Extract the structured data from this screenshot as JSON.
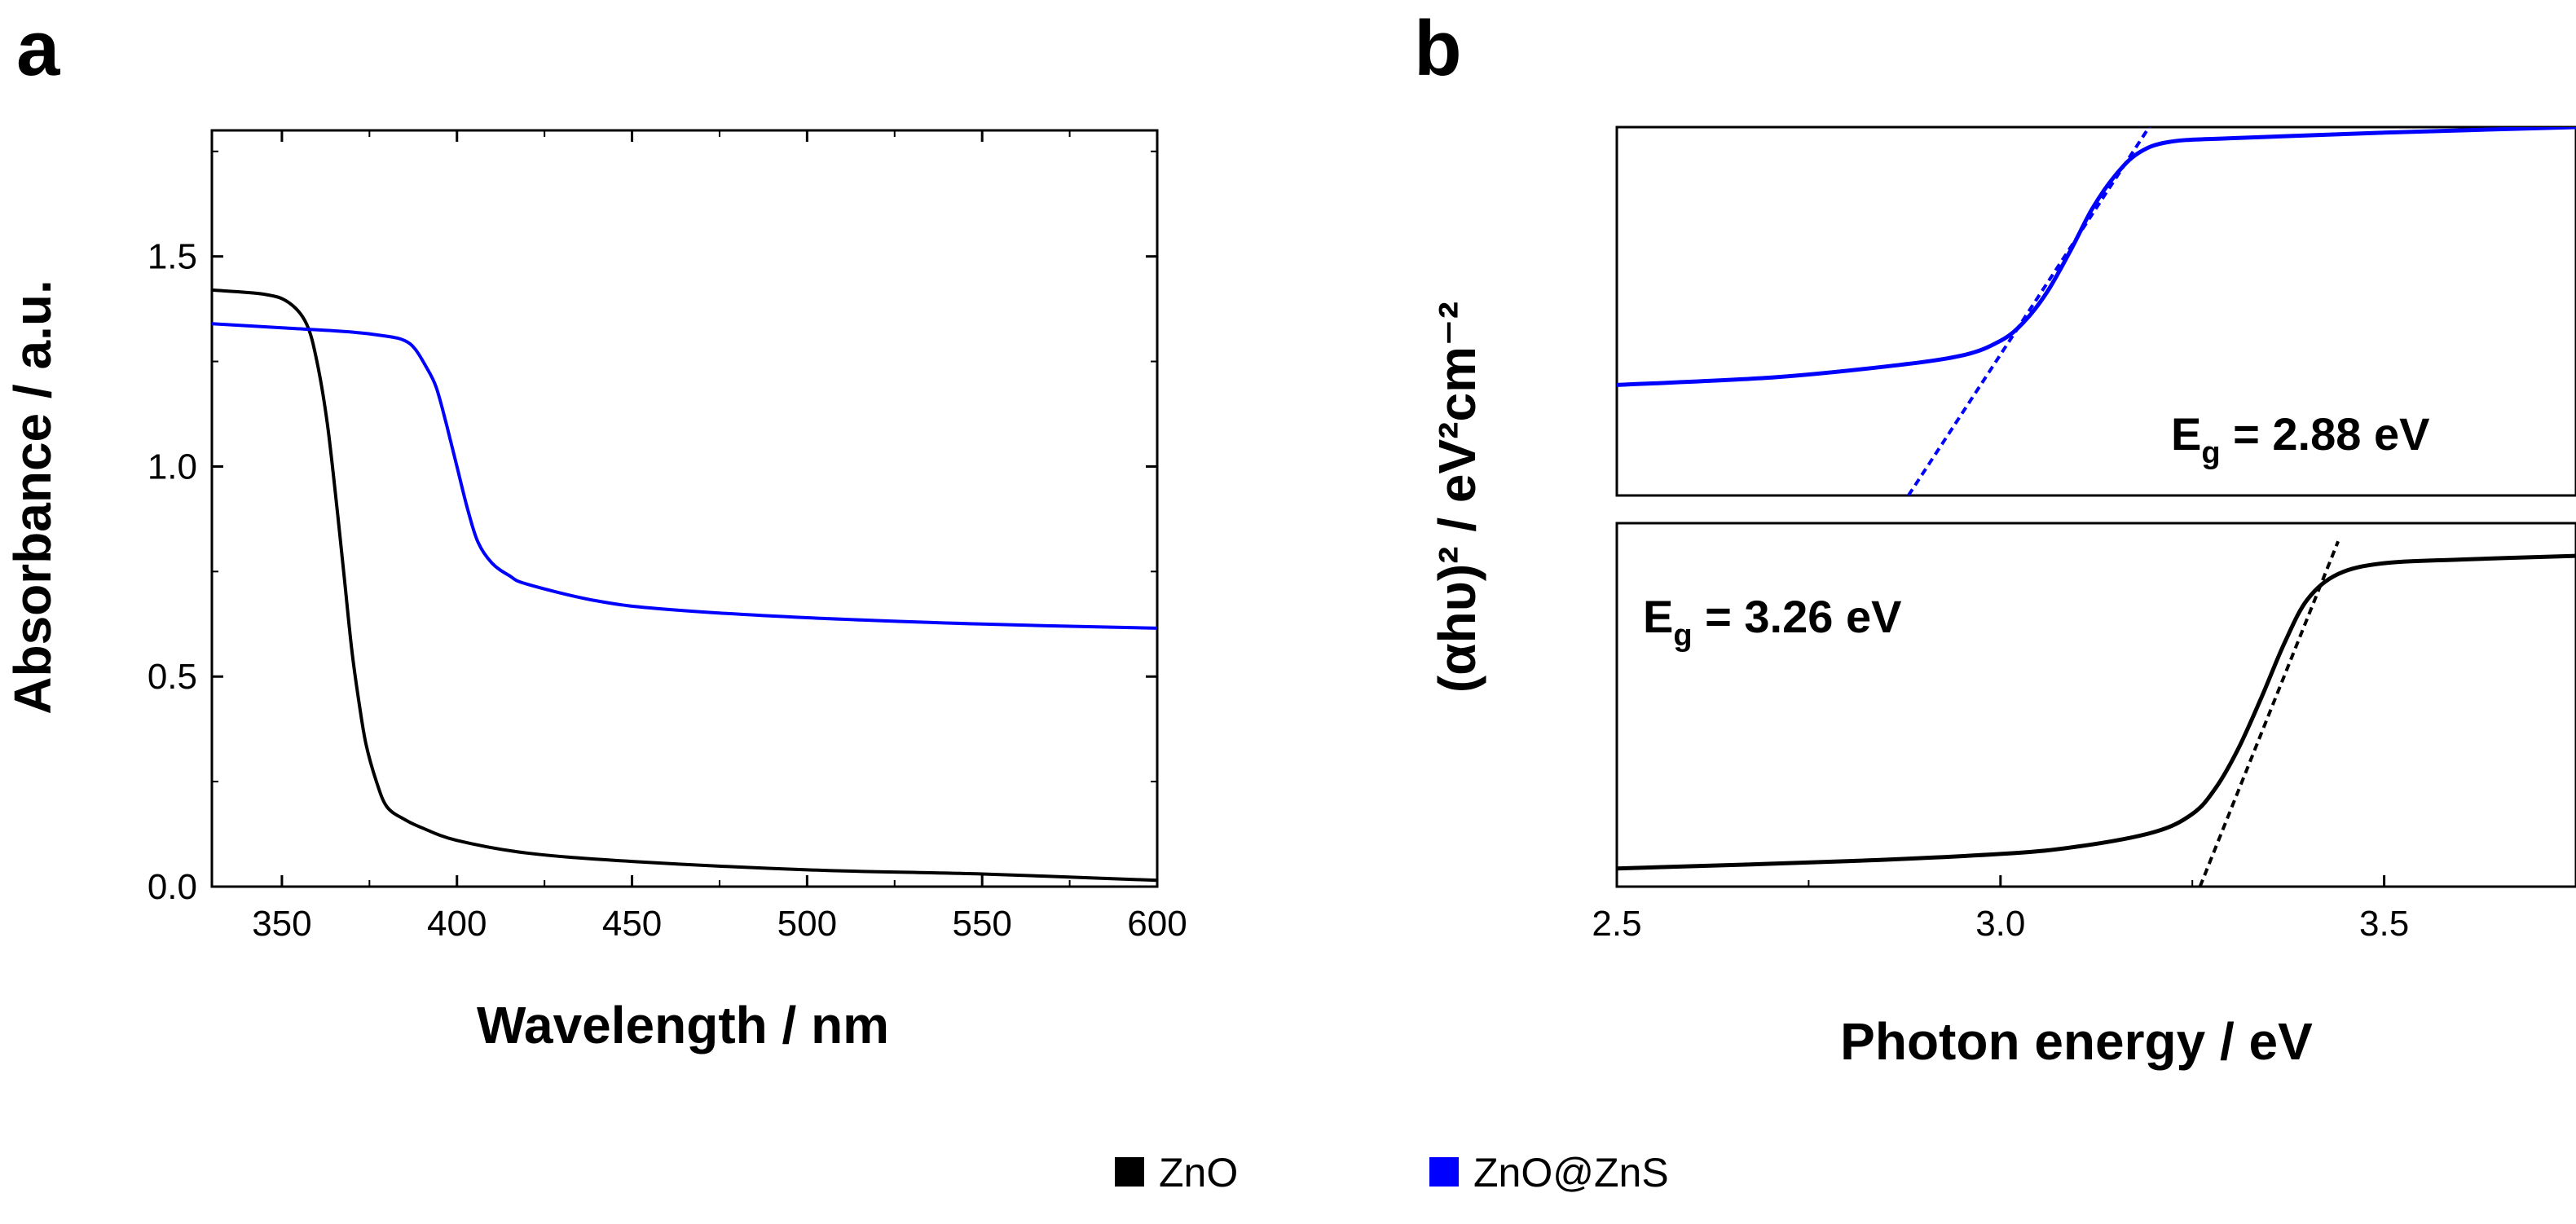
{
  "legend": [
    {
      "label": "ZnO",
      "color": "#000000"
    },
    {
      "label": "ZnO@ZnS",
      "color": "#0000ff"
    }
  ],
  "chart_data": [
    {
      "panel": "a",
      "type": "line",
      "xlabel": "Wavelength / nm",
      "ylabel": "Absorbance / a.u.",
      "xlim": [
        330,
        600
      ],
      "ylim": [
        0.0,
        1.8
      ],
      "xticks": [
        350,
        400,
        450,
        500,
        550,
        600
      ],
      "xtick_labels": [
        "350",
        "400",
        "450",
        "500",
        "550",
        "600"
      ],
      "yticks": [
        0.0,
        0.5,
        1.0,
        1.5
      ],
      "ytick_labels": [
        "0.0",
        "0.5",
        "1.0",
        "1.5"
      ],
      "series": [
        {
          "name": "ZnO",
          "color": "#000000",
          "x": [
            330,
            345,
            352,
            357,
            360,
            363,
            366,
            368,
            370,
            372,
            374,
            377,
            380,
            385,
            390,
            400,
            420,
            450,
            500,
            550,
            600
          ],
          "y": [
            1.42,
            1.41,
            1.39,
            1.34,
            1.25,
            1.1,
            0.88,
            0.72,
            0.56,
            0.44,
            0.34,
            0.25,
            0.19,
            0.16,
            0.14,
            0.11,
            0.08,
            0.06,
            0.04,
            0.03,
            0.015
          ]
        },
        {
          "name": "ZnO@ZnS",
          "color": "#0000ff",
          "x": [
            330,
            350,
            370,
            380,
            385,
            388,
            391,
            394,
            397,
            400,
            403,
            406,
            410,
            415,
            420,
            440,
            460,
            500,
            550,
            600
          ],
          "y": [
            1.34,
            1.33,
            1.32,
            1.31,
            1.3,
            1.28,
            1.24,
            1.19,
            1.1,
            1.0,
            0.9,
            0.82,
            0.77,
            0.74,
            0.72,
            0.68,
            0.66,
            0.64,
            0.625,
            0.615
          ]
        }
      ]
    },
    {
      "panel": "b",
      "type": "line",
      "xlabel": "Photon energy / eV",
      "ylabel": "(αhυ)² / eV²cm⁻²",
      "xlim": [
        2.5,
        3.75
      ],
      "xticks": [
        2.5,
        3.0,
        3.5
      ],
      "xtick_labels": [
        "2.5",
        "3.0",
        "3.5"
      ],
      "subplots": [
        {
          "name": "ZnO@ZnS",
          "annotation": {
            "prefix": "E",
            "sub": "g",
            "text": " = 2.88 eV"
          },
          "ylim": [
            0,
            1
          ],
          "series": [
            {
              "name": "ZnO@ZnS",
              "color": "#0000ff",
              "x": [
                2.5,
                2.7,
                2.85,
                2.95,
                3.0,
                3.03,
                3.06,
                3.09,
                3.12,
                3.15,
                3.18,
                3.22,
                3.3,
                3.5,
                3.75
              ],
              "y": [
                0.3,
                0.32,
                0.35,
                0.38,
                0.42,
                0.47,
                0.55,
                0.66,
                0.78,
                0.87,
                0.93,
                0.96,
                0.97,
                0.985,
                1.0
              ]
            }
          ],
          "tangent": {
            "color": "#0000ff",
            "x": [
              2.88,
              3.2
            ],
            "y": [
              0.0,
              1.02
            ]
          }
        },
        {
          "name": "ZnO",
          "annotation": {
            "prefix": "E",
            "sub": "g",
            "text": " = 3.26 eV"
          },
          "ylim": [
            0,
            1
          ],
          "series": [
            {
              "name": "ZnO",
              "color": "#000000",
              "x": [
                2.5,
                2.8,
                3.0,
                3.1,
                3.2,
                3.25,
                3.28,
                3.31,
                3.34,
                3.37,
                3.4,
                3.44,
                3.5,
                3.6,
                3.75
              ],
              "y": [
                0.05,
                0.07,
                0.09,
                0.11,
                0.15,
                0.2,
                0.27,
                0.38,
                0.52,
                0.67,
                0.79,
                0.86,
                0.89,
                0.9,
                0.91
              ]
            }
          ],
          "tangent": {
            "color": "#000000",
            "x": [
              3.26,
              3.44
            ],
            "y": [
              0.0,
              0.95
            ]
          }
        }
      ]
    }
  ]
}
